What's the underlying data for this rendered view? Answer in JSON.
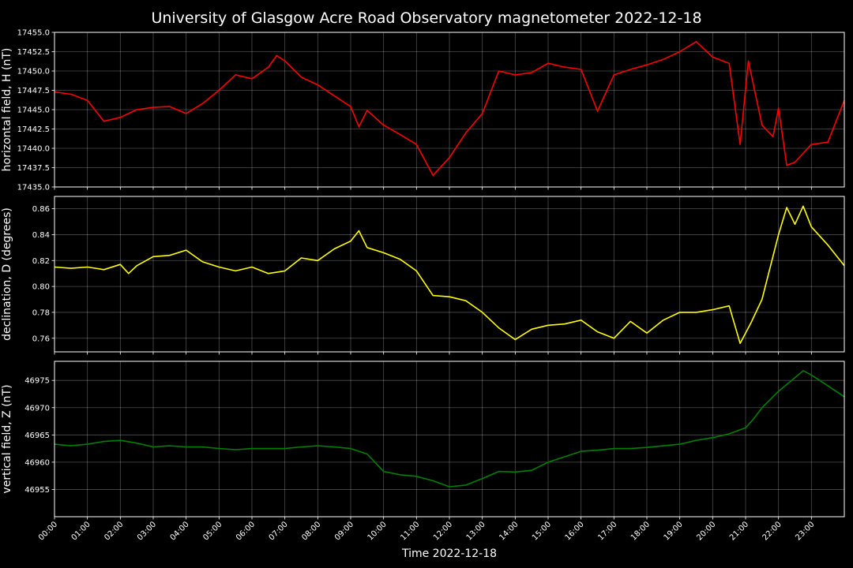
{
  "chart_data": {
    "type": "line",
    "title": "University of Glasgow Acre Road Observatory magnetometer 2022-12-18",
    "xlabel": "Time 2022-12-18",
    "x_ticks": [
      "00:00",
      "01:00",
      "02:00",
      "03:00",
      "04:00",
      "05:00",
      "06:00",
      "07:00",
      "08:00",
      "09:00",
      "10:00",
      "11:00",
      "12:00",
      "13:00",
      "14:00",
      "15:00",
      "16:00",
      "17:00",
      "18:00",
      "19:00",
      "20:00",
      "21:00",
      "22:00",
      "23:00"
    ],
    "xlim": [
      "00:00",
      "24:00"
    ],
    "grid": true,
    "panels": [
      {
        "ylabel": "horizontal field, H (nT)",
        "color": "#ff0000",
        "ylim": [
          17435.0,
          17455.0
        ],
        "yticks": [
          "17435.0",
          "17437.5",
          "17440.0",
          "17442.5",
          "17445.0",
          "17447.5",
          "17450.0",
          "17452.5",
          "17455.0"
        ],
        "x": [
          "00:00",
          "00:30",
          "01:00",
          "01:30",
          "02:00",
          "02:30",
          "03:00",
          "03:30",
          "04:00",
          "04:30",
          "05:00",
          "05:30",
          "06:00",
          "06:30",
          "06:45",
          "07:00",
          "07:30",
          "08:00",
          "08:30",
          "09:00",
          "09:15",
          "09:30",
          "10:00",
          "10:30",
          "11:00",
          "11:30",
          "12:00",
          "12:30",
          "13:00",
          "13:30",
          "14:00",
          "14:30",
          "15:00",
          "15:30",
          "16:00",
          "16:30",
          "17:00",
          "17:30",
          "18:00",
          "18:30",
          "19:00",
          "19:30",
          "20:00",
          "20:30",
          "20:50",
          "21:05",
          "21:30",
          "21:50",
          "22:00",
          "22:15",
          "22:30",
          "23:00",
          "23:30",
          "24:00"
        ],
        "y": [
          17447.3,
          17447.0,
          17446.2,
          17443.5,
          17444.0,
          17445.0,
          17445.3,
          17445.4,
          17444.5,
          17445.8,
          17447.5,
          17449.5,
          17449.0,
          17450.5,
          17452.0,
          17451.3,
          17449.2,
          17448.2,
          17446.8,
          17445.4,
          17442.8,
          17444.9,
          17443.0,
          17441.8,
          17440.5,
          17436.5,
          17438.8,
          17442.0,
          17444.5,
          17450.0,
          17449.5,
          17449.8,
          17451.0,
          17450.5,
          17450.2,
          17444.8,
          17449.5,
          17450.2,
          17450.8,
          17451.5,
          17452.5,
          17453.8,
          17451.8,
          17451.0,
          17440.5,
          17451.3,
          17443.0,
          17441.5,
          17445.2,
          17437.8,
          17438.2,
          17440.5,
          17440.8,
          17446.2
        ]
      },
      {
        "ylabel": "declination, D (degrees)",
        "color": "#ffff00",
        "ylim": [
          0.7495,
          0.8695
        ],
        "yticks": [
          "0.76",
          "0.78",
          "0.80",
          "0.82",
          "0.84",
          "0.86"
        ],
        "x": [
          "00:00",
          "00:30",
          "01:00",
          "01:30",
          "02:00",
          "02:15",
          "02:30",
          "03:00",
          "03:30",
          "04:00",
          "04:30",
          "05:00",
          "05:30",
          "06:00",
          "06:30",
          "07:00",
          "07:30",
          "08:00",
          "08:30",
          "09:00",
          "09:15",
          "09:30",
          "10:00",
          "10:30",
          "11:00",
          "11:30",
          "12:00",
          "12:30",
          "13:00",
          "13:30",
          "14:00",
          "14:30",
          "15:00",
          "15:30",
          "16:00",
          "16:30",
          "17:00",
          "17:30",
          "18:00",
          "18:30",
          "19:00",
          "19:30",
          "20:00",
          "20:30",
          "20:50",
          "21:10",
          "21:30",
          "22:00",
          "22:15",
          "22:30",
          "22:45",
          "23:00",
          "23:30",
          "24:00"
        ],
        "y": [
          0.815,
          0.814,
          0.815,
          0.813,
          0.817,
          0.81,
          0.816,
          0.823,
          0.824,
          0.828,
          0.819,
          0.815,
          0.812,
          0.815,
          0.81,
          0.812,
          0.822,
          0.82,
          0.829,
          0.835,
          0.843,
          0.83,
          0.826,
          0.821,
          0.812,
          0.793,
          0.792,
          0.789,
          0.78,
          0.768,
          0.759,
          0.767,
          0.77,
          0.771,
          0.774,
          0.765,
          0.76,
          0.773,
          0.764,
          0.774,
          0.78,
          0.78,
          0.782,
          0.785,
          0.756,
          0.772,
          0.79,
          0.84,
          0.861,
          0.848,
          0.862,
          0.846,
          0.832,
          0.816
        ]
      },
      {
        "ylabel": "vertical field, Z (nT)",
        "color": "#008000",
        "ylim": [
          46950.0,
          46978.5
        ],
        "yticks": [
          "46955",
          "46960",
          "46965",
          "46970",
          "46975"
        ],
        "x": [
          "00:00",
          "00:30",
          "01:00",
          "01:30",
          "02:00",
          "02:30",
          "03:00",
          "03:30",
          "04:00",
          "04:30",
          "05:00",
          "05:30",
          "06:00",
          "06:30",
          "07:00",
          "07:30",
          "08:00",
          "08:30",
          "09:00",
          "09:30",
          "10:00",
          "10:30",
          "11:00",
          "11:30",
          "12:00",
          "12:30",
          "13:00",
          "13:30",
          "14:00",
          "14:30",
          "15:00",
          "15:30",
          "16:00",
          "16:30",
          "17:00",
          "17:30",
          "18:00",
          "18:30",
          "19:00",
          "19:30",
          "20:00",
          "20:30",
          "21:00",
          "21:15",
          "21:30",
          "22:00",
          "22:30",
          "22:45",
          "23:00",
          "23:30",
          "24:00"
        ],
        "y": [
          46963.3,
          46963.0,
          46963.3,
          46963.8,
          46964.0,
          46963.5,
          46962.8,
          46963.0,
          46962.8,
          46962.8,
          46962.5,
          46962.3,
          46962.5,
          46962.5,
          46962.5,
          46962.8,
          46963.0,
          46962.8,
          46962.5,
          46961.5,
          46958.3,
          46957.7,
          46957.4,
          46956.6,
          46955.5,
          46955.8,
          46957.0,
          46958.3,
          46958.2,
          46958.5,
          46960.0,
          46961.0,
          46962.0,
          46962.2,
          46962.5,
          46962.5,
          46962.7,
          46963.0,
          46963.3,
          46964.0,
          46964.5,
          46965.2,
          46966.3,
          46968.0,
          46970.0,
          46973.0,
          46975.5,
          46976.8,
          46976.0,
          46974.0,
          46972.0
        ]
      }
    ]
  }
}
